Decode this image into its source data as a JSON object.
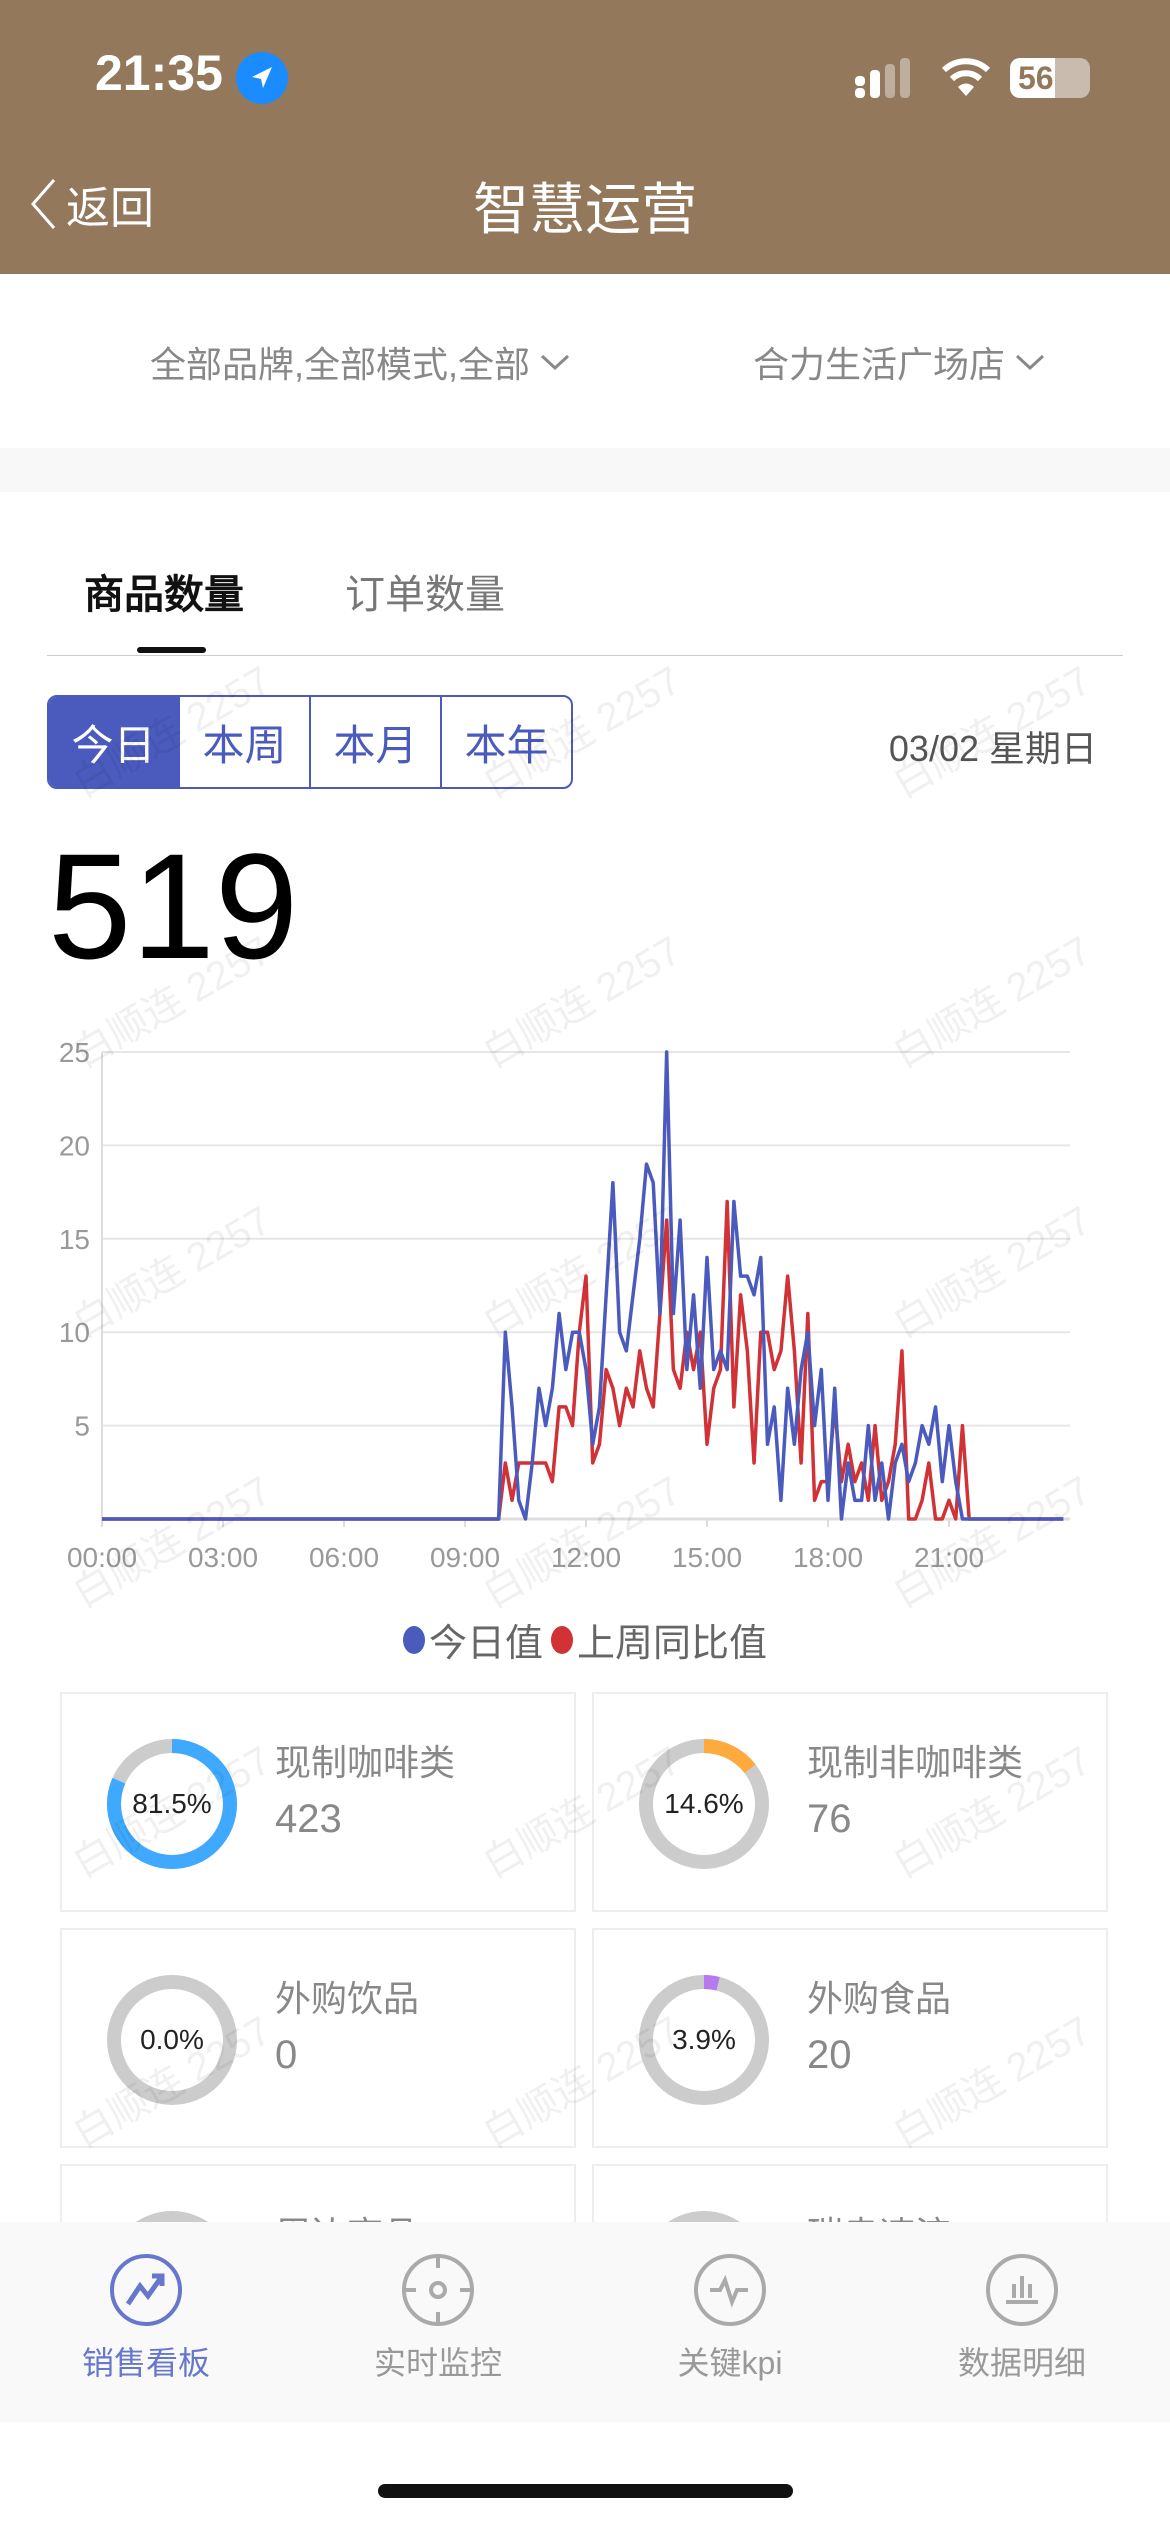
{
  "status": {
    "time": "21:35",
    "battery": "56",
    "battery_level": 56
  },
  "nav": {
    "back": "返回",
    "title": "智慧运营"
  },
  "filters": {
    "brand": "全部品牌,全部模式,全部",
    "store": "合力生活广场店"
  },
  "tabs": [
    {
      "label": "商品数量",
      "active": true
    },
    {
      "label": "订单数量",
      "active": false
    }
  ],
  "periods": [
    "今日",
    "本周",
    "本月",
    "本年"
  ],
  "selected_period": "今日",
  "date": "03/02 星期日",
  "total": "519",
  "watermark": "白顺连 2257",
  "chart_data": {
    "type": "line",
    "ylim": [
      0,
      25
    ],
    "yticks": [
      "5",
      "10",
      "15",
      "20",
      "25"
    ],
    "xticks": [
      "00:00",
      "03:00",
      "06:00",
      "09:00",
      "12:00",
      "15:00",
      "18:00",
      "21:00"
    ],
    "xlim": [
      "00:00",
      "24:00"
    ],
    "grid": true,
    "legend_position": "bottom",
    "note_zero_outside": true,
    "x": [
      "09:50",
      "10:00",
      "10:10",
      "10:20",
      "10:30",
      "10:40",
      "10:50",
      "11:00",
      "11:10",
      "11:20",
      "11:30",
      "11:40",
      "11:50",
      "12:00",
      "12:10",
      "12:20",
      "12:30",
      "12:40",
      "12:50",
      "13:00",
      "13:10",
      "13:20",
      "13:30",
      "13:40",
      "13:50",
      "14:00",
      "14:10",
      "14:20",
      "14:30",
      "14:40",
      "14:50",
      "15:00",
      "15:10",
      "15:20",
      "15:30",
      "15:40",
      "15:50",
      "16:00",
      "16:10",
      "16:20",
      "16:30",
      "16:40",
      "16:50",
      "17:00",
      "17:10",
      "17:20",
      "17:30",
      "17:40",
      "17:50",
      "18:00",
      "18:10",
      "18:20",
      "18:30",
      "18:40",
      "18:50",
      "19:00",
      "19:10",
      "19:20",
      "19:30",
      "19:40",
      "19:50",
      "20:00",
      "20:10",
      "20:20",
      "20:30",
      "20:40",
      "20:50",
      "21:00",
      "21:10",
      "21:20",
      "21:30",
      "21:40"
    ],
    "series": [
      {
        "name": "今日值",
        "color": "#4a5bbd",
        "values": [
          0,
          10,
          6,
          1,
          0,
          3,
          7,
          5,
          7,
          11,
          8,
          10,
          10,
          8,
          4,
          6,
          12,
          18,
          10,
          9,
          12,
          15,
          19,
          18,
          11,
          25,
          11,
          16,
          8,
          12,
          7,
          14,
          8,
          9,
          8,
          17,
          13,
          13,
          12,
          14,
          4,
          6,
          1,
          7,
          4,
          8,
          10,
          5,
          8,
          1,
          7,
          0,
          3,
          1,
          1,
          5,
          1,
          3,
          0,
          3,
          4,
          2,
          3,
          5,
          4,
          6,
          2,
          5,
          2,
          0,
          0,
          0
        ]
      },
      {
        "name": "上周同比值",
        "color": "#d03236",
        "values": [
          0,
          3,
          1,
          3,
          3,
          3,
          3,
          3,
          2,
          6,
          6,
          5,
          10,
          13,
          3,
          4,
          8,
          7,
          5,
          7,
          6,
          9,
          7,
          6,
          11,
          16,
          8,
          7,
          10,
          8,
          10,
          4,
          7,
          8,
          17,
          6,
          12,
          9,
          3,
          10,
          10,
          8,
          9,
          13,
          9,
          3,
          11,
          1,
          2,
          2,
          6,
          2,
          4,
          2,
          3,
          1,
          5,
          1,
          2,
          4,
          9,
          0,
          0,
          1,
          3,
          0,
          0,
          1,
          0,
          5,
          0,
          0
        ]
      }
    ]
  },
  "categories": [
    {
      "name": "现制咖啡类",
      "value": "423",
      "percent": "81.5%",
      "fraction": 0.815,
      "color": "#3fa9ff"
    },
    {
      "name": "现制非咖啡类",
      "value": "76",
      "percent": "14.6%",
      "fraction": 0.146,
      "color": "#ffaa3d"
    },
    {
      "name": "外购饮品",
      "value": "0",
      "percent": "0.0%",
      "fraction": 0,
      "color": "#cccccc"
    },
    {
      "name": "外购食品",
      "value": "20",
      "percent": "3.9%",
      "fraction": 0.039,
      "color": "#b57bee"
    },
    {
      "name": "周边商品",
      "value": "",
      "percent": "",
      "fraction": 0,
      "color": "#cccccc"
    },
    {
      "name": "瑞幸速溶",
      "value": "",
      "percent": "",
      "fraction": 0,
      "color": "#cccccc"
    }
  ],
  "tabbar": [
    {
      "label": "销售看板",
      "icon": "trend-up-icon",
      "active": true
    },
    {
      "label": "实时监控",
      "icon": "target-icon",
      "active": false
    },
    {
      "label": "关键kpi",
      "icon": "pulse-icon",
      "active": false
    },
    {
      "label": "数据明细",
      "icon": "bar-chart-icon",
      "active": false
    }
  ],
  "colors": {
    "header": "#93785c",
    "accent": "#4a5bbd",
    "active_tab": "#6677cc"
  }
}
